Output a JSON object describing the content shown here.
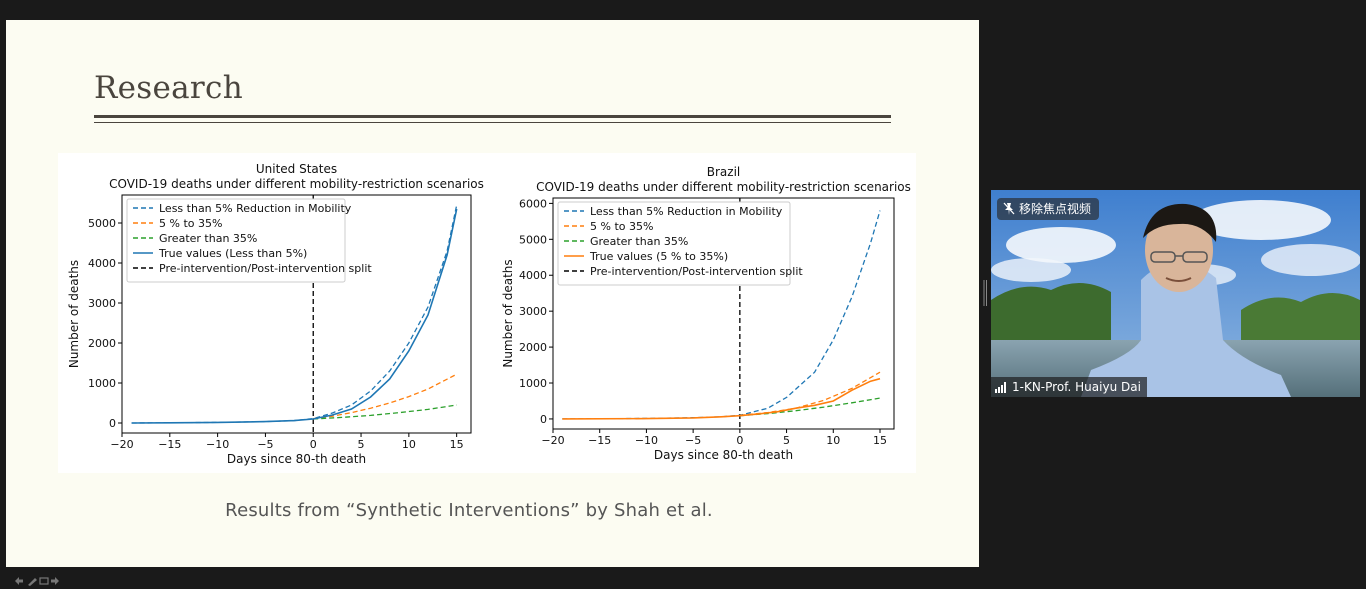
{
  "slide": {
    "title": "Research",
    "caption": "Results from “Synthetic Interventions” by Shah et al."
  },
  "chart_data": [
    {
      "type": "line",
      "title": "United States",
      "subtitle": "COVID-19 deaths under different mobility-restriction scenarios",
      "xlabel": "Days since 80-th death",
      "ylabel": "Number of deaths",
      "xlim": [
        -20,
        16.5
      ],
      "ylim": [
        -250,
        5700
      ],
      "xticks": [
        -20,
        -15,
        -10,
        -5,
        0,
        5,
        10,
        15
      ],
      "yticks": [
        0,
        1000,
        2000,
        3000,
        4000,
        5000
      ],
      "legend_position": "top-left",
      "split_x": 0,
      "series": [
        {
          "name": "Less than 5% Reduction in  Mobility",
          "color": "#1f77b4",
          "style": "dashed",
          "x": [
            -19,
            -15,
            -10,
            -5,
            -2,
            0,
            2,
            4,
            6,
            8,
            10,
            12,
            14,
            15
          ],
          "y": [
            0,
            5,
            15,
            35,
            60,
            110,
            250,
            450,
            800,
            1300,
            2000,
            2900,
            4300,
            5450
          ]
        },
        {
          "name": "5 % to 35%",
          "color": "#ff7f0e",
          "style": "dashed",
          "x": [
            0,
            2,
            4,
            6,
            8,
            10,
            12,
            15
          ],
          "y": [
            110,
            170,
            260,
            370,
            500,
            660,
            850,
            1220
          ]
        },
        {
          "name": "Greater than 35%",
          "color": "#2ca02c",
          "style": "dashed",
          "x": [
            0,
            3,
            6,
            9,
            12,
            15
          ],
          "y": [
            100,
            140,
            190,
            260,
            340,
            450
          ]
        },
        {
          "name": "True values (Less than 5%)",
          "color": "#1f77b4",
          "style": "solid",
          "x": [
            -19,
            -15,
            -10,
            -5,
            -2,
            0,
            2,
            4,
            6,
            8,
            10,
            12,
            14,
            15
          ],
          "y": [
            0,
            5,
            15,
            35,
            60,
            100,
            200,
            350,
            650,
            1100,
            1800,
            2700,
            4200,
            5350
          ]
        },
        {
          "name": "Pre-intervention/Post-intervention split",
          "color": "#000000",
          "style": "dashed",
          "x": [],
          "y": []
        }
      ]
    },
    {
      "type": "line",
      "title": "Brazil",
      "subtitle": "COVID-19 deaths under different mobility-restriction scenarios",
      "xlabel": "Days since 80-th death",
      "ylabel": "Number of deaths",
      "xlim": [
        -20,
        16.5
      ],
      "ylim": [
        -280,
        6150
      ],
      "xticks": [
        -20,
        -15,
        -10,
        -5,
        0,
        5,
        10,
        15
      ],
      "yticks": [
        0,
        1000,
        2000,
        3000,
        4000,
        5000,
        6000
      ],
      "legend_position": "top-left",
      "split_x": 0,
      "series": [
        {
          "name": "Less than 5% Reduction in  Mobility",
          "color": "#1f77b4",
          "style": "dashed",
          "x": [
            -19,
            -15,
            -10,
            -5,
            -2,
            0,
            3,
            5,
            8,
            10,
            12,
            14,
            15
          ],
          "y": [
            0,
            5,
            15,
            35,
            60,
            100,
            300,
            600,
            1300,
            2200,
            3400,
            4900,
            5800
          ]
        },
        {
          "name": "5 % to 35%",
          "color": "#ff7f0e",
          "style": "dashed",
          "x": [
            0,
            3,
            6,
            9,
            12,
            15
          ],
          "y": [
            100,
            180,
            300,
            520,
            850,
            1300
          ]
        },
        {
          "name": "Greater than 35%",
          "color": "#2ca02c",
          "style": "dashed",
          "x": [
            0,
            3,
            6,
            9,
            12,
            15
          ],
          "y": [
            90,
            150,
            230,
            330,
            450,
            580
          ]
        },
        {
          "name": "True values (5 % to 35%)",
          "color": "#ff7f0e",
          "style": "solid",
          "x": [
            -19,
            -10,
            -5,
            -2,
            0,
            2,
            4,
            6,
            8,
            10,
            12,
            14,
            15
          ],
          "y": [
            0,
            10,
            30,
            60,
            90,
            140,
            200,
            300,
            380,
            500,
            800,
            1050,
            1120
          ]
        },
        {
          "name": "Pre-intervention/Post-intervention split",
          "color": "#000000",
          "style": "dashed",
          "x": [],
          "y": []
        }
      ]
    }
  ],
  "video": {
    "unpin_label": "移除焦点视频",
    "participant_name": "1-KN-Prof. Huaiyu Dai"
  },
  "icons": {
    "unpin": "unpin-icon",
    "signal": "signal-bars-icon",
    "slide_nav": "slide-nav-icons"
  }
}
